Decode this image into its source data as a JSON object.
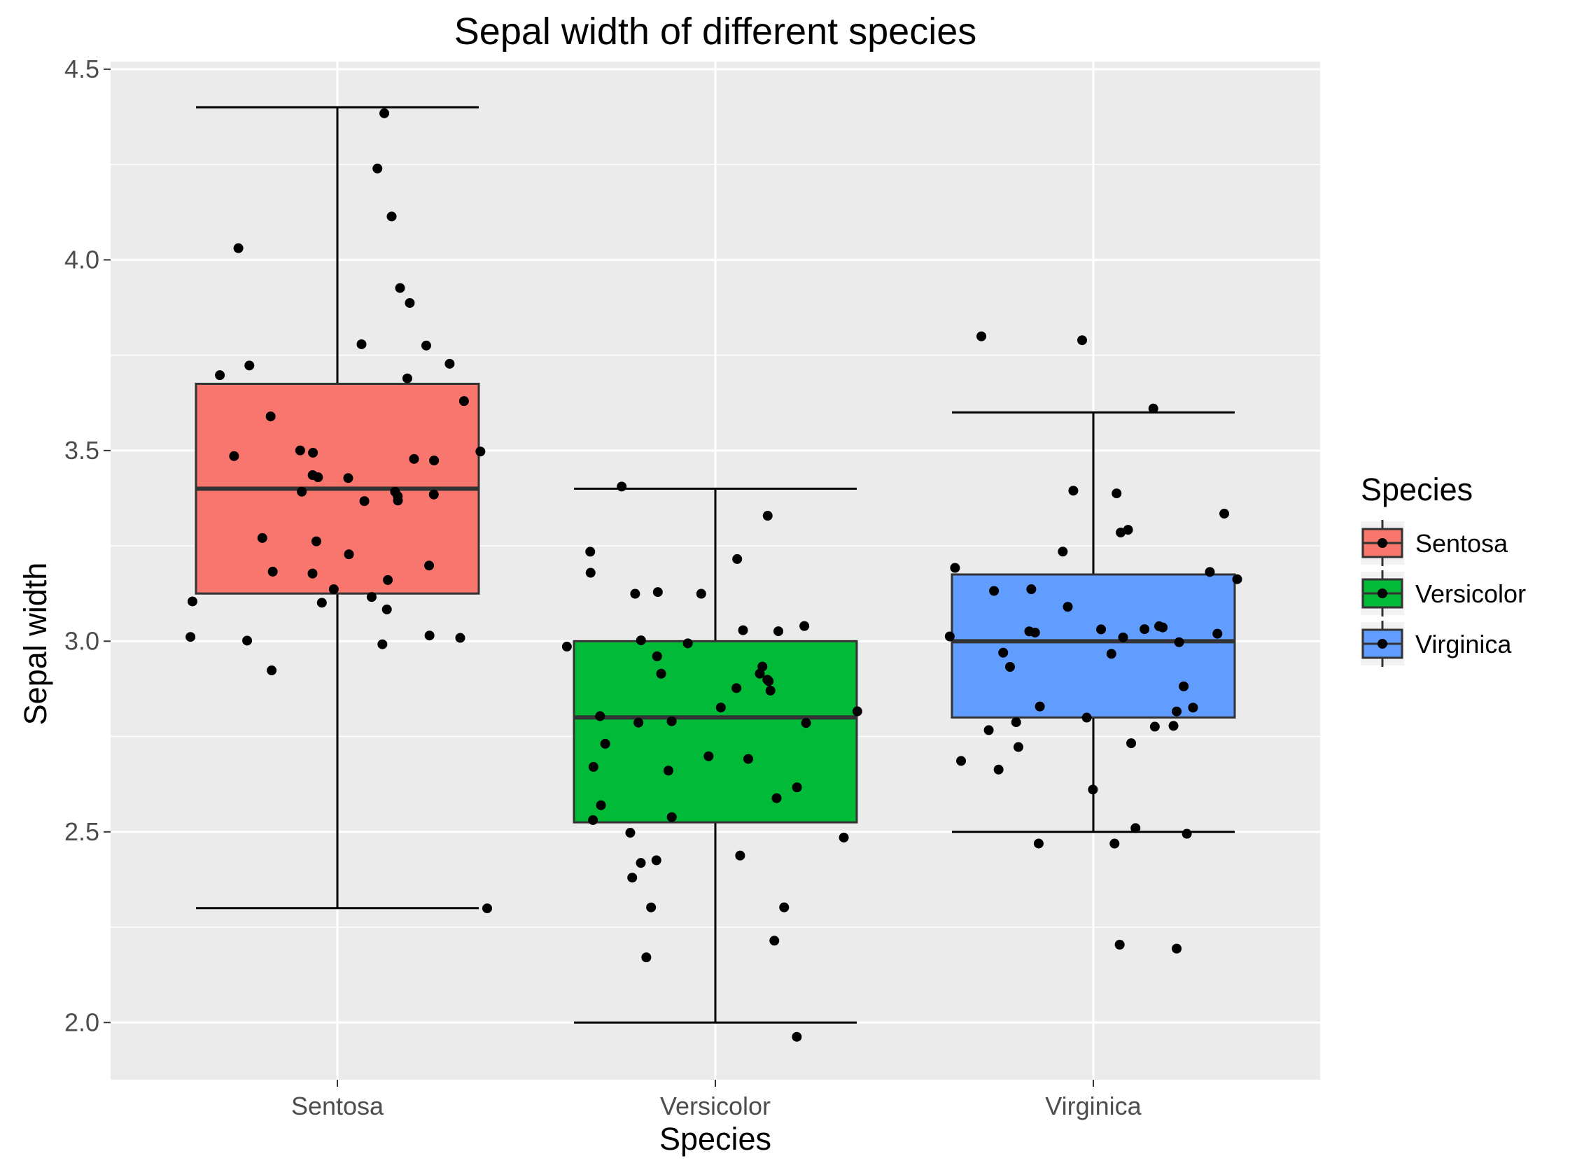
{
  "chart_data": {
    "type": "box",
    "title": "Sepal width of different species",
    "xlabel": "Species",
    "ylabel": "Sepal width",
    "ylim": [
      1.85,
      4.52
    ],
    "yticks": [
      2.0,
      2.5,
      3.0,
      3.5,
      4.0,
      4.5
    ],
    "ytick_labels": [
      "2.0",
      "2.5",
      "3.0",
      "3.5",
      "4.0",
      "4.5"
    ],
    "grid": true,
    "legend": {
      "title": "Species",
      "placement": "right",
      "entries": [
        "Sentosa",
        "Versicolor",
        "Virginica"
      ]
    },
    "categories": [
      "Sentosa",
      "Versicolor",
      "Virginica"
    ],
    "colors": {
      "Sentosa": "#F8766D",
      "Versicolor": "#00BA38",
      "Virginica": "#619CFF",
      "panel_bg": "#EBEBEB",
      "grid": "#FFFFFF",
      "points": "#000000"
    },
    "boxes": [
      {
        "name": "Sentosa",
        "min": 2.3,
        "q1": 3.125,
        "median": 3.4,
        "q3": 3.675,
        "max": 4.4
      },
      {
        "name": "Versicolor",
        "min": 2.0,
        "q1": 2.525,
        "median": 2.8,
        "q3": 3.0,
        "max": 3.4
      },
      {
        "name": "Virginica",
        "min": 2.5,
        "q1": 2.8,
        "median": 3.0,
        "q3": 3.175,
        "max": 3.6
      }
    ],
    "points": [
      {
        "group": "Sentosa",
        "values": [
          4.4,
          4.2,
          4.1,
          4.0,
          3.9,
          3.9,
          3.8,
          3.8,
          3.7,
          3.7,
          3.7,
          3.7,
          3.6,
          3.6,
          3.5,
          3.5,
          3.5,
          3.5,
          3.5,
          3.5,
          3.4,
          3.4,
          3.4,
          3.4,
          3.4,
          3.4,
          3.4,
          3.4,
          3.4,
          3.3,
          3.3,
          3.2,
          3.2,
          3.2,
          3.2,
          3.2,
          3.1,
          3.1,
          3.1,
          3.1,
          3.1,
          3.0,
          3.0,
          3.0,
          3.0,
          3.0,
          2.9,
          2.3
        ]
      },
      {
        "group": "Versicolor",
        "values": [
          3.4,
          3.3,
          3.2,
          3.2,
          3.2,
          3.1,
          3.1,
          3.1,
          3.0,
          3.0,
          3.0,
          3.0,
          3.0,
          3.0,
          3.0,
          2.9,
          2.9,
          2.9,
          2.9,
          2.9,
          2.9,
          2.9,
          2.8,
          2.8,
          2.8,
          2.8,
          2.8,
          2.8,
          2.7,
          2.7,
          2.7,
          2.7,
          2.7,
          2.6,
          2.6,
          2.6,
          2.5,
          2.5,
          2.5,
          2.5,
          2.4,
          2.4,
          2.4,
          2.4,
          2.3,
          2.3,
          2.2,
          2.2,
          2.0
        ]
      },
      {
        "group": "Virginica",
        "values": [
          3.8,
          3.8,
          3.6,
          3.4,
          3.4,
          3.3,
          3.3,
          3.3,
          3.2,
          3.2,
          3.2,
          3.2,
          3.1,
          3.1,
          3.1,
          3.0,
          3.0,
          3.0,
          3.0,
          3.0,
          3.0,
          3.0,
          3.0,
          3.0,
          3.0,
          3.0,
          3.0,
          2.9,
          2.9,
          2.8,
          2.8,
          2.8,
          2.8,
          2.8,
          2.8,
          2.8,
          2.8,
          2.7,
          2.7,
          2.7,
          2.7,
          2.6,
          2.5,
          2.5,
          2.5,
          2.5,
          2.2,
          2.2
        ]
      }
    ]
  }
}
